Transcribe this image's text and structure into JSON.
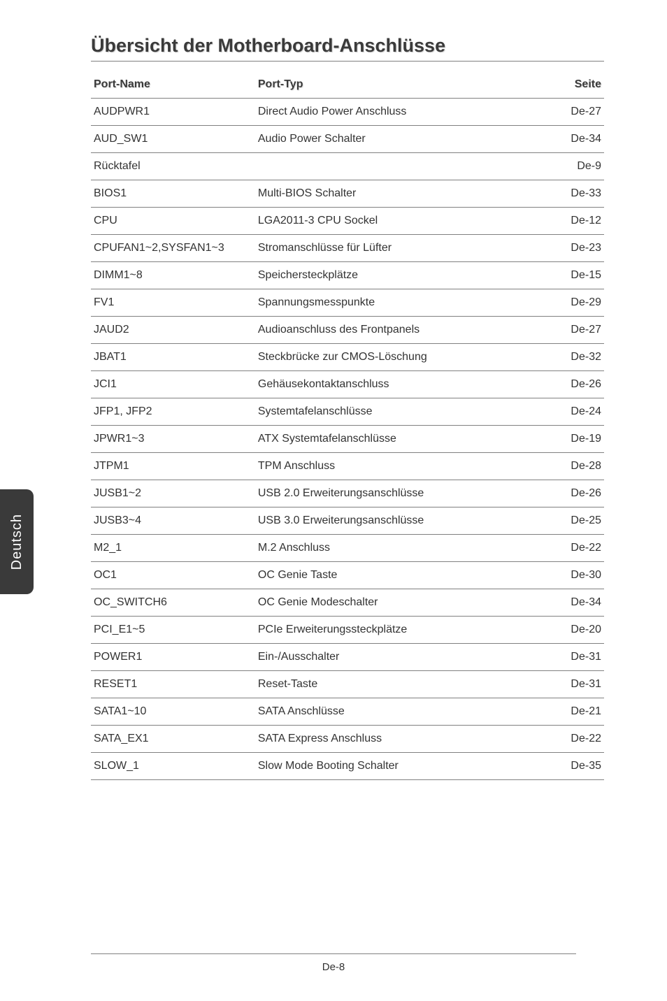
{
  "title": "Übersicht der Motherboard-Anschlüsse",
  "side_tab": "Deutsch",
  "columns": {
    "port_name": "Port-Name",
    "port_typ": "Port-Typ",
    "seite": "Seite"
  },
  "rows": [
    {
      "name": "AUDPWR1",
      "typ": "Direct Audio Power Anschluss",
      "seite": "De-27"
    },
    {
      "name": "AUD_SW1",
      "typ": "Audio Power Schalter",
      "seite": "De-34"
    },
    {
      "name": "Rücktafel",
      "typ": "",
      "seite": "De-9"
    },
    {
      "name": "BIOS1",
      "typ": "Multi-BIOS Schalter",
      "seite": "De-33"
    },
    {
      "name": "CPU",
      "typ": "LGA2011-3 CPU Sockel",
      "seite": "De-12"
    },
    {
      "name": "CPUFAN1~2,SYSFAN1~3",
      "typ": "Stromanschlüsse für Lüfter",
      "seite": "De-23"
    },
    {
      "name": "DIMM1~8",
      "typ": "Speichersteckplätze",
      "seite": "De-15"
    },
    {
      "name": "FV1",
      "typ": "Spannungsmesspunkte",
      "seite": "De-29"
    },
    {
      "name": "JAUD2",
      "typ": "Audioanschluss des Frontpanels",
      "seite": "De-27"
    },
    {
      "name": "JBAT1",
      "typ": "Steckbrücke zur CMOS-Löschung",
      "seite": "De-32"
    },
    {
      "name": "JCI1",
      "typ": "Gehäusekontaktanschluss",
      "seite": "De-26"
    },
    {
      "name": "JFP1, JFP2",
      "typ": "Systemtafelanschlüsse",
      "seite": "De-24"
    },
    {
      "name": "JPWR1~3",
      "typ": "ATX Systemtafelanschlüsse",
      "seite": "De-19"
    },
    {
      "name": "JTPM1",
      "typ": "TPM Anschluss",
      "seite": "De-28"
    },
    {
      "name": "JUSB1~2",
      "typ": "USB 2.0 Erweiterungsanschlüsse",
      "seite": "De-26"
    },
    {
      "name": "JUSB3~4",
      "typ": "USB 3.0 Erweiterungsanschlüsse",
      "seite": "De-25"
    },
    {
      "name": "M2_1",
      "typ": "M.2 Anschluss",
      "seite": "De-22"
    },
    {
      "name": "OC1",
      "typ": "OC Genie Taste",
      "seite": "De-30"
    },
    {
      "name": "OC_SWITCH6",
      "typ": "OC Genie Modeschalter",
      "seite": "De-34"
    },
    {
      "name": "PCI_E1~5",
      "typ": "PCIe Erweiterungssteckplätze",
      "seite": "De-20"
    },
    {
      "name": "POWER1",
      "typ": "Ein-/Ausschalter",
      "seite": "De-31"
    },
    {
      "name": "RESET1",
      "typ": "Reset-Taste",
      "seite": "De-31"
    },
    {
      "name": "SATA1~10",
      "typ": "SATA Anschlüsse",
      "seite": "De-21"
    },
    {
      "name": "SATA_EX1",
      "typ": "SATA Express Anschluss",
      "seite": "De-22"
    },
    {
      "name": "SLOW_1",
      "typ": "Slow Mode Booting Schalter",
      "seite": "De-35"
    }
  ],
  "page_number": "De-8"
}
